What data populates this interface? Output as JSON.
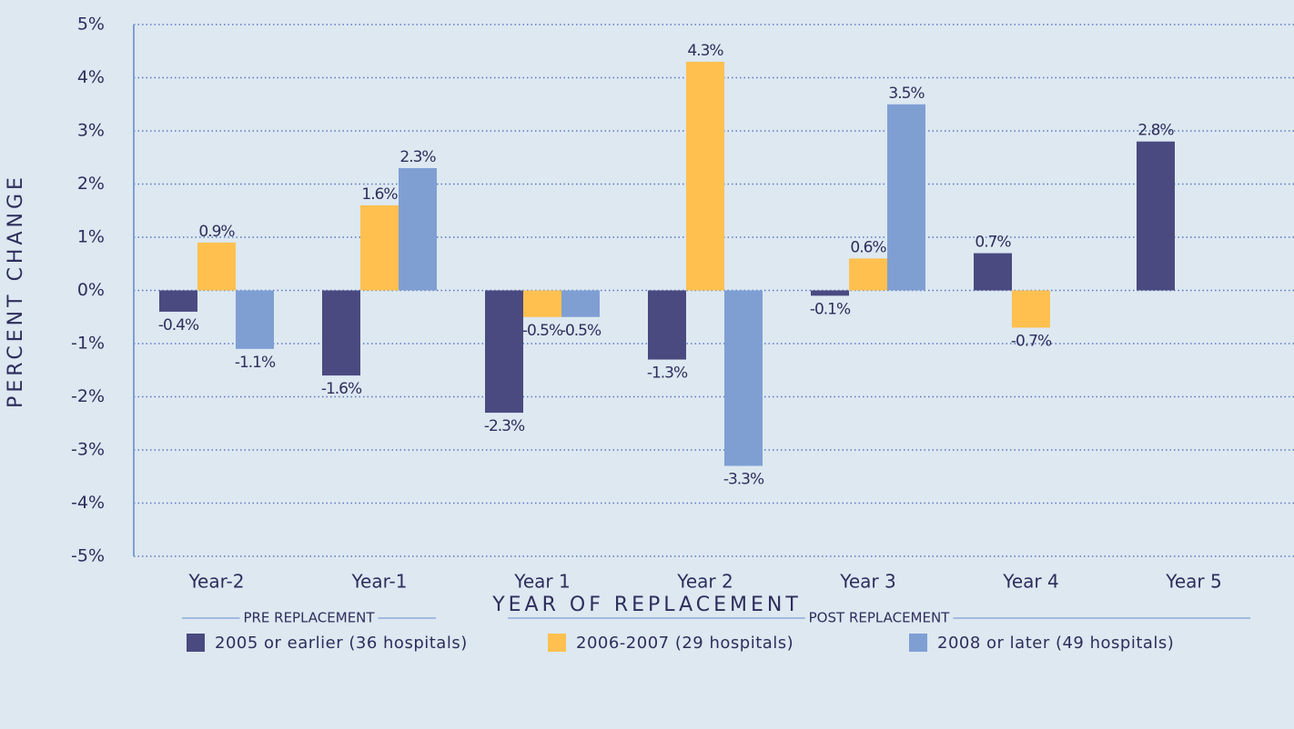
{
  "chart_data": {
    "type": "bar",
    "x_label": "YEAR OF REPLACEMENT",
    "y_label": "PERCENT CHANGE",
    "categories": [
      "Year-2",
      "Year-1",
      "Year 1",
      "Year 2",
      "Year 3",
      "Year 4",
      "Year 5"
    ],
    "series": [
      {
        "name": "2005 or earlier (36 hospitals)",
        "color": "#4a4a80",
        "values": [
          -0.4,
          -1.6,
          -2.3,
          -1.3,
          -0.1,
          0.7,
          2.8
        ],
        "value_labels": [
          "-0.4%",
          "-1.6%",
          "-2.3%",
          "-1.3%",
          "-0.1%",
          "0.7%",
          "2.8%"
        ]
      },
      {
        "name": "2006-2007 (29 hospitals)",
        "color": "#ffc04f",
        "values": [
          0.9,
          1.6,
          -0.5,
          4.3,
          0.6,
          -0.7,
          null
        ],
        "value_labels": [
          "0.9%",
          "1.6%",
          "-0.5%",
          "4.3%",
          "0.6%",
          "-0.7%",
          null
        ]
      },
      {
        "name": "2008 or later (49 hospitals)",
        "color": "#7f9fd3",
        "values": [
          -1.1,
          2.3,
          -0.5,
          -3.3,
          3.5,
          null,
          null
        ],
        "value_labels": [
          "-1.1%",
          "2.3%",
          "-0.5%",
          "-3.3%",
          "3.5%",
          null,
          null
        ]
      }
    ],
    "groups": [
      {
        "label": "PRE REPLACEMENT",
        "size": 2
      },
      {
        "label": "POST REPLACEMENT",
        "size": 5
      }
    ],
    "ylim": [
      -5,
      5
    ],
    "yticks": [
      {
        "value": -5,
        "label": "-5%"
      },
      {
        "value": -4,
        "label": "-4%"
      },
      {
        "value": -3,
        "label": "-3%"
      },
      {
        "value": -2,
        "label": "-2%"
      },
      {
        "value": -1,
        "label": "-1%"
      },
      {
        "value": 0,
        "label": "0%"
      },
      {
        "value": 1,
        "label": "1%"
      },
      {
        "value": 2,
        "label": "2%"
      },
      {
        "value": 3,
        "label": "3%"
      },
      {
        "value": 4,
        "label": "4%"
      },
      {
        "value": 5,
        "label": "5%"
      }
    ],
    "grid": true
  }
}
